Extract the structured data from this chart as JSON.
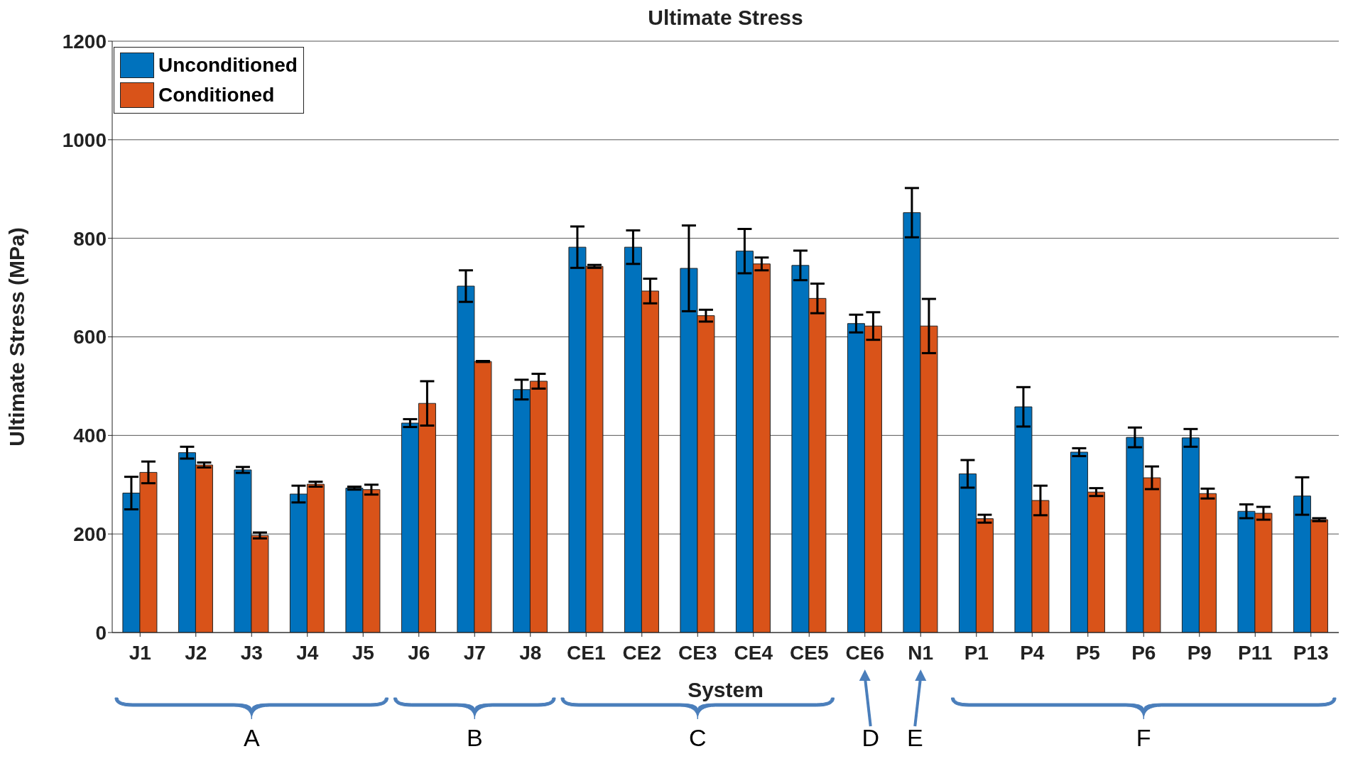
{
  "chart_data": {
    "type": "bar",
    "title": "Ultimate Stress",
    "xlabel": "System",
    "ylabel": "Ultimate Stress (MPa)",
    "categories": [
      "J1",
      "J2",
      "J3",
      "J4",
      "J5",
      "J6",
      "J7",
      "J8",
      "CE1",
      "CE2",
      "CE3",
      "CE4",
      "CE5",
      "CE6",
      "N1",
      "P1",
      "P4",
      "P5",
      "P6",
      "P9",
      "P11",
      "P13"
    ],
    "series": [
      {
        "name": "Unconditioned",
        "color": "#0072bd",
        "values": [
          283,
          365,
          330,
          281,
          293,
          425,
          703,
          493,
          782,
          782,
          739,
          774,
          745,
          627,
          852,
          322,
          458,
          366,
          396,
          395,
          246,
          277
        ],
        "errors": [
          33,
          12,
          6,
          17,
          3,
          8,
          32,
          20,
          42,
          34,
          87,
          45,
          30,
          18,
          50,
          28,
          40,
          8,
          20,
          18,
          14,
          38
        ]
      },
      {
        "name": "Conditioned",
        "color": "#d95319",
        "values": [
          325,
          340,
          197,
          301,
          290,
          465,
          550,
          510,
          743,
          693,
          643,
          748,
          678,
          622,
          622,
          231,
          268,
          285,
          314,
          282,
          242,
          229
        ],
        "errors": [
          22,
          5,
          6,
          5,
          10,
          45,
          1,
          15,
          3,
          25,
          12,
          13,
          30,
          28,
          55,
          8,
          30,
          8,
          23,
          10,
          13,
          3
        ]
      }
    ],
    "ylim": [
      0,
      1200
    ],
    "yticks": [
      0,
      200,
      400,
      600,
      800,
      1000,
      1200
    ],
    "grid": "y",
    "legend": "top left",
    "annotations": [
      "A",
      "B",
      "C",
      "D",
      "E",
      "F"
    ]
  }
}
